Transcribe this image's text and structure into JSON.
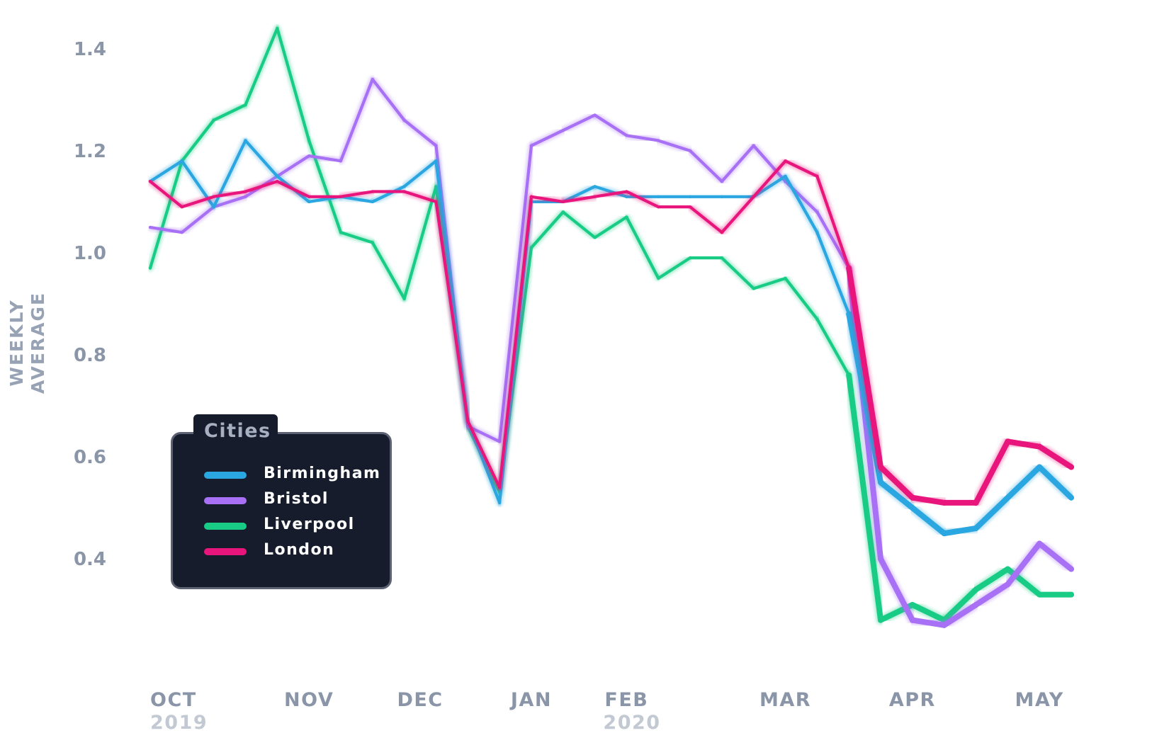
{
  "chart_data": {
    "type": "line",
    "ylabel": "WEEKLY AVERAGE",
    "ylim": [
      0.21,
      1.49
    ],
    "yticks": [
      "1.4",
      "1.2",
      "1.0",
      "0.8",
      "0.6",
      "0.4"
    ],
    "ytick_values": [
      1.4,
      1.2,
      1.0,
      0.8,
      0.6,
      0.4
    ],
    "x_points": 30,
    "xticks": [
      {
        "label": "OCT",
        "year": "2019",
        "week": 0
      },
      {
        "label": "NOV",
        "week": 5
      },
      {
        "label": "DEC",
        "week": 8.5
      },
      {
        "label": "JAN",
        "week": 12
      },
      {
        "label": "FEB",
        "year": "2020",
        "week": 15
      },
      {
        "label": "MAR",
        "week": 20
      },
      {
        "label": "APR",
        "week": 24
      },
      {
        "label": "MAY",
        "week": 28
      }
    ],
    "legend_title": "Cities",
    "series": [
      {
        "name": "Liverpool",
        "color": "#19cc86",
        "values": [
          0.97,
          1.18,
          1.26,
          1.29,
          1.44,
          1.22,
          1.04,
          1.02,
          0.91,
          1.13,
          0.66,
          0.53,
          1.01,
          1.08,
          1.03,
          1.07,
          0.95,
          0.99,
          0.99,
          0.93,
          0.95,
          0.87,
          0.76,
          0.28,
          0.31,
          0.28,
          0.34,
          0.38,
          0.33,
          0.33
        ]
      },
      {
        "name": "Bristol",
        "color": "#a770f5",
        "values": [
          1.05,
          1.04,
          1.09,
          1.11,
          1.15,
          1.19,
          1.18,
          1.34,
          1.26,
          1.21,
          0.66,
          0.63,
          1.21,
          1.24,
          1.27,
          1.23,
          1.22,
          1.2,
          1.14,
          1.21,
          1.14,
          1.08,
          0.97,
          0.4,
          0.28,
          0.27,
          0.31,
          0.35,
          0.43,
          0.38
        ]
      },
      {
        "name": "Birmingham",
        "color": "#2aa6e0",
        "values": [
          1.14,
          1.18,
          1.09,
          1.22,
          1.15,
          1.1,
          1.11,
          1.1,
          1.13,
          1.18,
          0.67,
          0.51,
          1.1,
          1.1,
          1.13,
          1.11,
          1.11,
          1.11,
          1.11,
          1.11,
          1.15,
          1.04,
          0.88,
          0.55,
          0.5,
          0.45,
          0.46,
          0.52,
          0.58,
          0.52
        ]
      },
      {
        "name": "London",
        "color": "#e8167c",
        "values": [
          1.14,
          1.09,
          1.11,
          1.12,
          1.14,
          1.11,
          1.11,
          1.12,
          1.12,
          1.1,
          0.67,
          0.54,
          1.11,
          1.1,
          1.11,
          1.12,
          1.09,
          1.09,
          1.04,
          1.11,
          1.18,
          1.15,
          0.97,
          0.58,
          0.52,
          0.51,
          0.51,
          0.63,
          0.62,
          0.58
        ]
      }
    ],
    "legend_order": [
      "Birmingham",
      "Bristol",
      "Liverpool",
      "London"
    ]
  }
}
